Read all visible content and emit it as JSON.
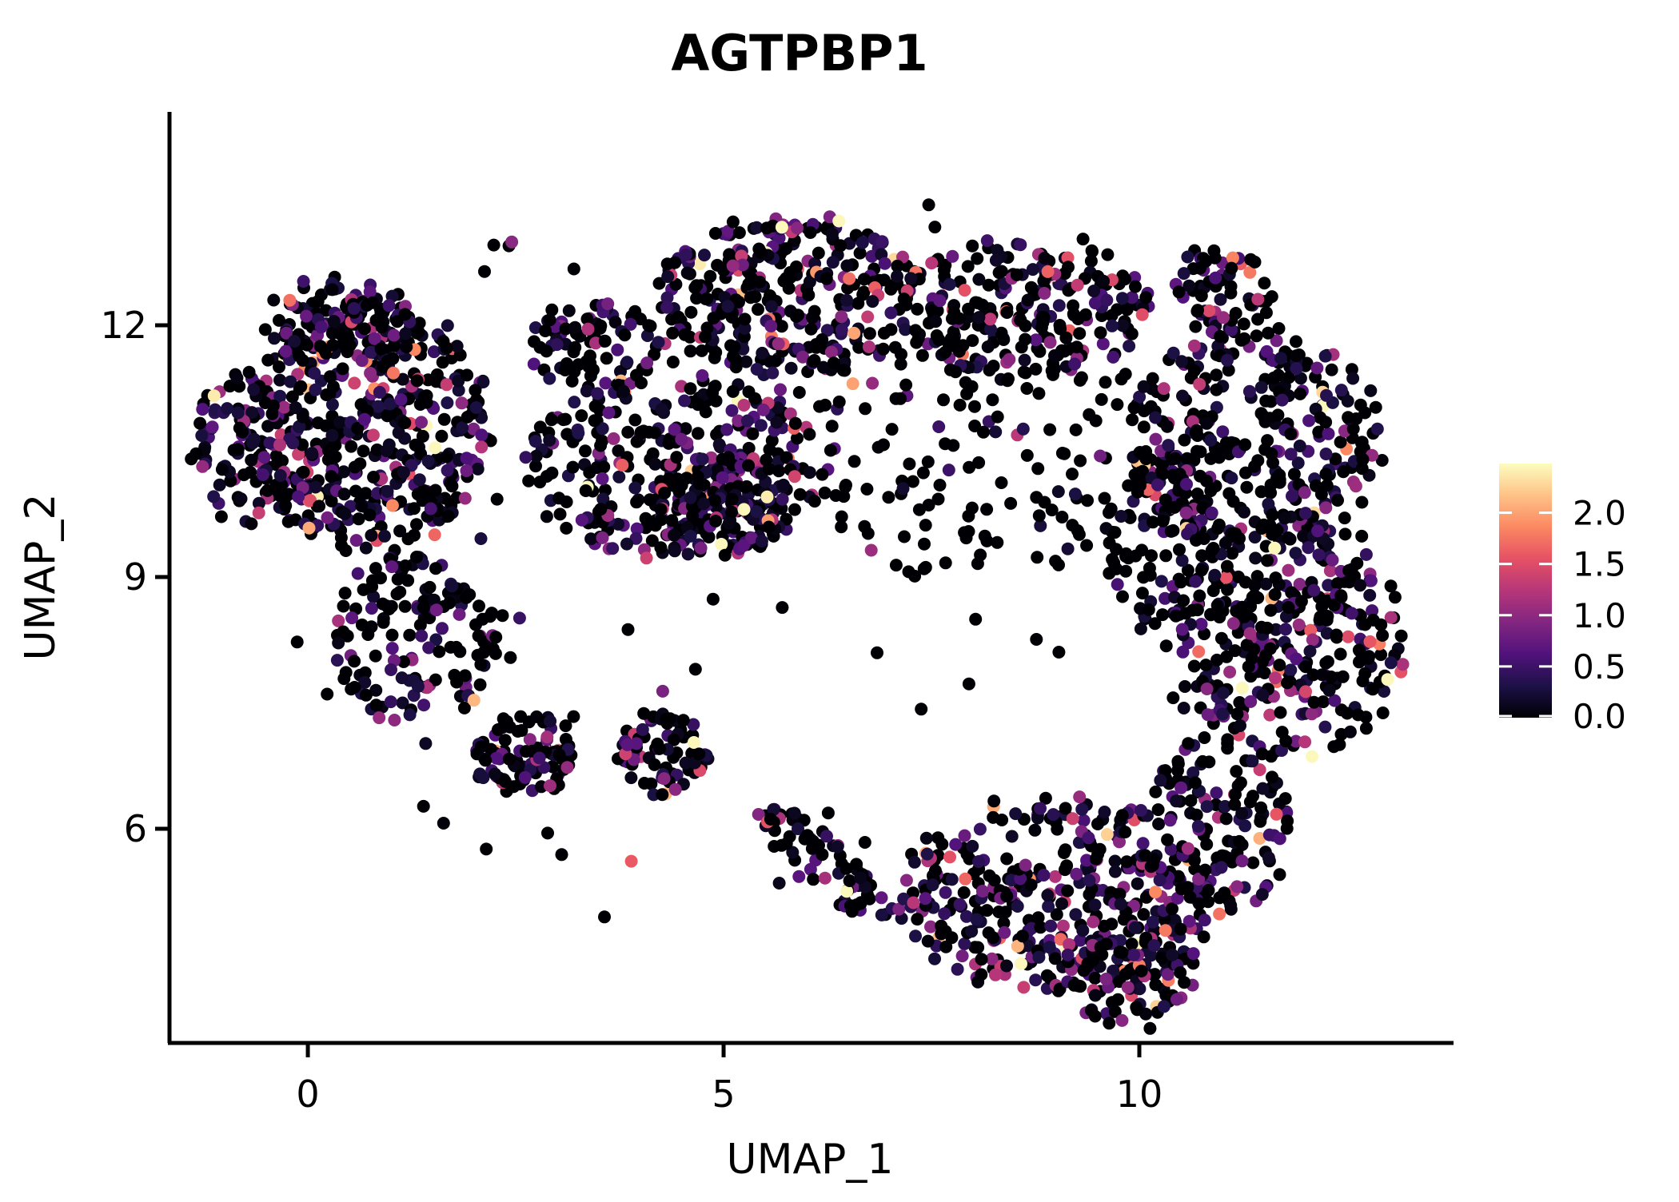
{
  "figure": {
    "title": "AGTPBP1"
  },
  "chart_data": {
    "type": "scatter",
    "title": "AGTPBP1",
    "xlabel": "UMAP_1",
    "ylabel": "UMAP_2",
    "x_ticks": [
      0,
      5,
      10
    ],
    "y_ticks": [
      12,
      9,
      6
    ],
    "xlim": [
      -1.664,
      13.75
    ],
    "ylim": [
      3.448,
      14.543
    ],
    "grid": false,
    "legend_position": "right",
    "point_radius_px": 8,
    "seed": 42,
    "colorbar": {
      "tick_labels": [
        "2.0",
        "1.5",
        "1.0",
        "0.5",
        "0.0"
      ],
      "tick_values": [
        2.0,
        1.5,
        1.0,
        0.5,
        0.0
      ],
      "value_max": 2.48,
      "value_min": 0.0,
      "palette_name": "magma",
      "stops": [
        "#000004",
        "#1d1147",
        "#51127c",
        "#822681",
        "#b63679",
        "#e65164",
        "#fb8861",
        "#fec287",
        "#fcfdbf"
      ]
    },
    "clusters": [
      {
        "cx": 0.72,
        "cy": 10.83,
        "rx": 1.49,
        "ry": 1.52,
        "rot": 0,
        "n": 500,
        "p_zero": 0.4,
        "expr_scale": 0.5
      },
      {
        "cx": 0.34,
        "cy": 12.07,
        "rx": 0.85,
        "ry": 0.5,
        "rot": 0,
        "n": 90,
        "p_zero": 0.45,
        "expr_scale": 0.5
      },
      {
        "cx": -0.82,
        "cy": 10.54,
        "rx": 0.55,
        "ry": 0.95,
        "rot": 0,
        "n": 80,
        "p_zero": 0.42,
        "expr_scale": 0.5
      },
      {
        "cx": 1.3,
        "cy": 8.26,
        "rx": 1.0,
        "ry": 1.05,
        "rot": 0,
        "n": 150,
        "p_zero": 0.5,
        "expr_scale": 0.5
      },
      {
        "cx": 2.6,
        "cy": 6.88,
        "rx": 0.62,
        "ry": 0.5,
        "rot": 0,
        "n": 100,
        "p_zero": 0.48,
        "expr_scale": 0.5
      },
      {
        "cx": 4.28,
        "cy": 6.9,
        "rx": 0.55,
        "ry": 0.45,
        "rot": 0,
        "n": 75,
        "p_zero": 0.45,
        "expr_scale": 0.55
      },
      {
        "cx": 6.2,
        "cy": 5.59,
        "rx": 1.05,
        "ry": 0.3,
        "rot": -40,
        "n": 75,
        "p_zero": 0.5,
        "expr_scale": 0.6
      },
      {
        "cx": 5.8,
        "cy": 12.35,
        "rx": 1.6,
        "ry": 0.95,
        "rot": 0,
        "n": 340,
        "p_zero": 0.52,
        "expr_scale": 0.55
      },
      {
        "cx": 3.51,
        "cy": 11.78,
        "rx": 0.9,
        "ry": 0.55,
        "rot": 0,
        "n": 90,
        "p_zero": 0.5,
        "expr_scale": 0.5
      },
      {
        "cx": 4.4,
        "cy": 10.3,
        "rx": 1.85,
        "ry": 1.1,
        "rot": 0,
        "n": 300,
        "p_zero": 0.48,
        "expr_scale": 0.55
      },
      {
        "cx": 5.0,
        "cy": 9.88,
        "rx": 0.85,
        "ry": 0.6,
        "rot": 0,
        "n": 130,
        "p_zero": 0.42,
        "expr_scale": 0.6
      },
      {
        "cx": 8.61,
        "cy": 12.2,
        "rx": 1.5,
        "ry": 0.85,
        "rot": 0,
        "n": 230,
        "p_zero": 0.55,
        "expr_scale": 0.55
      },
      {
        "cx": 7.9,
        "cy": 10.6,
        "rx": 2.2,
        "ry": 1.65,
        "rot": 0,
        "n": 160,
        "p_zero": 0.78,
        "expr_scale": 0.5
      },
      {
        "cx": 11.0,
        "cy": 12.4,
        "rx": 0.6,
        "ry": 0.5,
        "rot": 0,
        "n": 70,
        "p_zero": 0.5,
        "expr_scale": 0.55
      },
      {
        "cx": 11.4,
        "cy": 10.64,
        "rx": 1.55,
        "ry": 1.3,
        "rot": 0,
        "n": 330,
        "p_zero": 0.52,
        "expr_scale": 0.55
      },
      {
        "cx": 11.8,
        "cy": 8.26,
        "rx": 1.4,
        "ry": 1.5,
        "rot": 0,
        "n": 330,
        "p_zero": 0.48,
        "expr_scale": 0.6
      },
      {
        "cx": 10.3,
        "cy": 9.3,
        "rx": 0.7,
        "ry": 1.1,
        "rot": 0,
        "n": 110,
        "p_zero": 0.55,
        "expr_scale": 0.55
      },
      {
        "cx": 9.0,
        "cy": 5.21,
        "rx": 1.9,
        "ry": 1.15,
        "rot": 0,
        "n": 390,
        "p_zero": 0.4,
        "expr_scale": 0.7
      },
      {
        "cx": 9.9,
        "cy": 4.21,
        "rx": 0.85,
        "ry": 0.6,
        "rot": 0,
        "n": 90,
        "p_zero": 0.45,
        "expr_scale": 0.6
      },
      {
        "cx": 10.9,
        "cy": 6.02,
        "rx": 0.9,
        "ry": 1.05,
        "rot": 0,
        "n": 150,
        "p_zero": 0.48,
        "expr_scale": 0.6
      },
      {
        "cx": 6.0,
        "cy": 9.2,
        "rx": 6.6,
        "ry": 4.6,
        "rot": 0,
        "n": 80,
        "p_zero": 0.7,
        "expr_scale": 0.5
      }
    ]
  }
}
